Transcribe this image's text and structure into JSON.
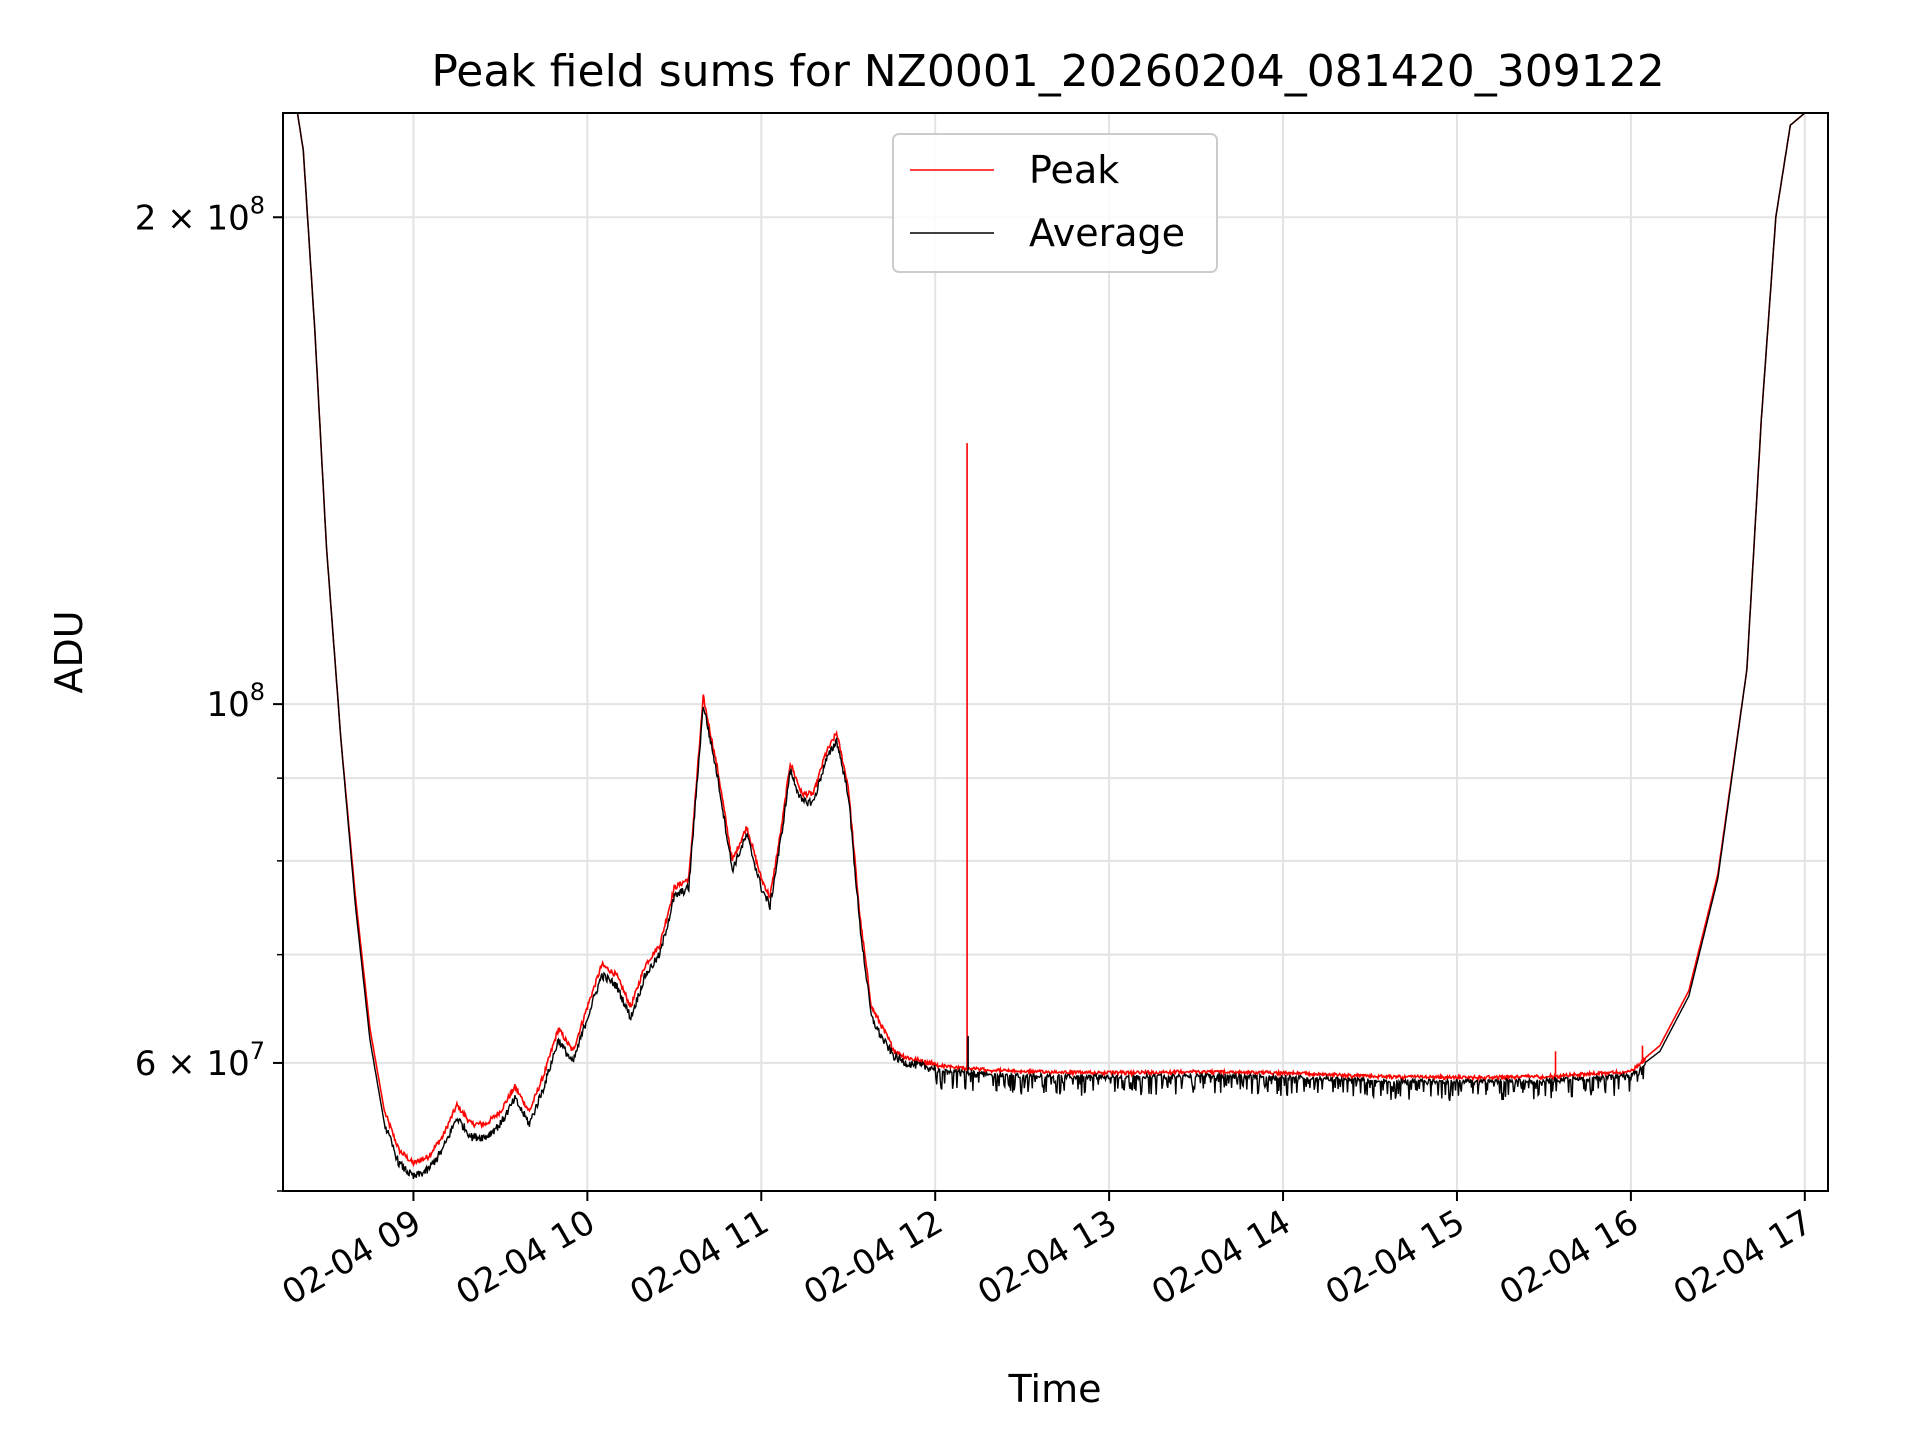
{
  "chart_data": {
    "type": "line",
    "title": "Peak field sums for NZ0001_20260204_081420_309122",
    "xlabel": "Time",
    "ylabel": "ADU",
    "y_scale": "log",
    "ylim": [
      50000000,
      232000000
    ],
    "xlim": [
      "02-04 08:15",
      "02-04 17:08"
    ],
    "grid": true,
    "legend": {
      "placement": "top-center",
      "entries": [
        {
          "name": "Peak",
          "color": "#ff0000"
        },
        {
          "name": "Average",
          "color": "#000000"
        }
      ]
    },
    "x_ticks": [
      "02-04 09",
      "02-04 10",
      "02-04 11",
      "02-04 12",
      "02-04 13",
      "02-04 14",
      "02-04 15",
      "02-04 16",
      "02-04 17"
    ],
    "x_tick_values": [
      "02-04 09:00",
      "02-04 10:00",
      "02-04 11:00",
      "02-04 12:00",
      "02-04 13:00",
      "02-04 14:00",
      "02-04 15:00",
      "02-04 16:00",
      "02-04 17:00"
    ],
    "y_ticks": [
      {
        "value": 200000000,
        "label": "2 × 10^8"
      },
      {
        "value": 100000000,
        "label": "10^8"
      },
      {
        "value": 60000000,
        "label": "6 × 10^7"
      }
    ],
    "y_minor_ticks": [
      70000000,
      80000000,
      90000000
    ],
    "series": [
      {
        "name": "Average",
        "color": "#000000",
        "x": [
          "02-04 08:15",
          "02-04 08:20",
          "02-04 08:22",
          "02-04 08:26",
          "02-04 08:30",
          "02-04 08:35",
          "02-04 08:40",
          "02-04 08:45",
          "02-04 08:50",
          "02-04 08:55",
          "02-04 09:00",
          "02-04 09:05",
          "02-04 09:10",
          "02-04 09:15",
          "02-04 09:20",
          "02-04 09:25",
          "02-04 09:30",
          "02-04 09:35",
          "02-04 09:40",
          "02-04 09:45",
          "02-04 09:50",
          "02-04 09:55",
          "02-04 10:00",
          "02-04 10:05",
          "02-04 10:10",
          "02-04 10:15",
          "02-04 10:20",
          "02-04 10:25",
          "02-04 10:30",
          "02-04 10:35",
          "02-04 10:40",
          "02-04 10:45",
          "02-04 10:50",
          "02-04 10:55",
          "02-04 11:00",
          "02-04 11:03",
          "02-04 11:07",
          "02-04 11:10",
          "02-04 11:14",
          "02-04 11:18",
          "02-04 11:22",
          "02-04 11:26",
          "02-04 11:30",
          "02-04 11:34",
          "02-04 11:38",
          "02-04 11:42",
          "02-04 11:46",
          "02-04 11:50",
          "02-04 11:54",
          "02-04 11:58",
          "02-04 12:05",
          "02-04 12:15",
          "02-04 12:30",
          "02-04 13:00",
          "02-04 13:30",
          "02-04 14:00",
          "02-04 14:30",
          "02-04 15:00",
          "02-04 15:30",
          "02-04 16:00",
          "02-04 16:10",
          "02-04 16:20",
          "02-04 16:30",
          "02-04 16:40",
          "02-04 16:45",
          "02-04 16:50",
          "02-04 16:55",
          "02-04 17:00",
          "02-04 17:08"
        ],
        "values": [
          232000000,
          232000000,
          220000000,
          170000000,
          125000000,
          95000000,
          75000000,
          62000000,
          55000000,
          52000000,
          51000000,
          51500000,
          53000000,
          55500000,
          54000000,
          54000000,
          55000000,
          57000000,
          55000000,
          58000000,
          62000000,
          60000000,
          64000000,
          68000000,
          67000000,
          64000000,
          68000000,
          70000000,
          76000000,
          77000000,
          100000000,
          90000000,
          79000000,
          83000000,
          77000000,
          75000000,
          83000000,
          91000000,
          87000000,
          87000000,
          92000000,
          95000000,
          88000000,
          73000000,
          64000000,
          62000000,
          60500000,
          60000000,
          59800000,
          59600000,
          59500000,
          59300000,
          59100000,
          59000000,
          59100000,
          59000000,
          58700000,
          58600000,
          58700000,
          59100000,
          61000000,
          66000000,
          78000000,
          105000000,
          150000000,
          200000000,
          228000000,
          232000000,
          232000000
        ]
      },
      {
        "name": "Peak",
        "color": "#ff0000",
        "x": [
          "02-04 08:15",
          "02-04 08:20",
          "02-04 08:22",
          "02-04 08:26",
          "02-04 08:30",
          "02-04 08:35",
          "02-04 08:40",
          "02-04 08:45",
          "02-04 08:50",
          "02-04 08:55",
          "02-04 09:00",
          "02-04 09:05",
          "02-04 09:10",
          "02-04 09:15",
          "02-04 09:20",
          "02-04 09:25",
          "02-04 09:30",
          "02-04 09:35",
          "02-04 09:40",
          "02-04 09:45",
          "02-04 09:50",
          "02-04 09:55",
          "02-04 10:00",
          "02-04 10:05",
          "02-04 10:10",
          "02-04 10:15",
          "02-04 10:20",
          "02-04 10:25",
          "02-04 10:30",
          "02-04 10:35",
          "02-04 10:40",
          "02-04 10:45",
          "02-04 10:50",
          "02-04 10:55",
          "02-04 11:00",
          "02-04 11:03",
          "02-04 11:07",
          "02-04 11:10",
          "02-04 11:14",
          "02-04 11:18",
          "02-04 11:22",
          "02-04 11:26",
          "02-04 11:30",
          "02-04 11:34",
          "02-04 11:38",
          "02-04 11:42",
          "02-04 11:46",
          "02-04 11:50",
          "02-04 11:54",
          "02-04 11:58",
          "02-04 12:05",
          "02-04 12:15",
          "02-04 12:30",
          "02-04 13:00",
          "02-04 13:30",
          "02-04 14:00",
          "02-04 14:30",
          "02-04 15:00",
          "02-04 15:30",
          "02-04 16:00",
          "02-04 16:10",
          "02-04 16:20",
          "02-04 16:30",
          "02-04 16:40",
          "02-04 16:45",
          "02-04 16:50",
          "02-04 16:55",
          "02-04 17:00",
          "02-04 17:08"
        ],
        "values": [
          232000000,
          232000000,
          220000000,
          170000000,
          125000000,
          95000000,
          76000000,
          63000000,
          56000000,
          53000000,
          52000000,
          52500000,
          54000000,
          56500000,
          55000000,
          55000000,
          56000000,
          58000000,
          56000000,
          59000000,
          63000000,
          61000000,
          65000000,
          69000000,
          68000000,
          65000000,
          69000000,
          71000000,
          77000000,
          78000000,
          101000000,
          91000000,
          80000000,
          84000000,
          78000000,
          76000000,
          84000000,
          92000000,
          88000000,
          88000000,
          93000000,
          96000000,
          89000000,
          74000000,
          65000000,
          63000000,
          61000000,
          60500000,
          60200000,
          60000000,
          59800000,
          59600000,
          59400000,
          59300000,
          59400000,
          59300000,
          59000000,
          58900000,
          59000000,
          59400000,
          61500000,
          66500000,
          78500000,
          105000000,
          150000000,
          200000000,
          228000000,
          232000000,
          232000000
        ],
        "spikes": [
          {
            "x": "02-04 12:11",
            "value": 145000000
          },
          {
            "x": "02-04 15:34",
            "value": 61000000
          },
          {
            "x": "02-04 16:04",
            "value": 61500000
          }
        ]
      }
    ]
  }
}
